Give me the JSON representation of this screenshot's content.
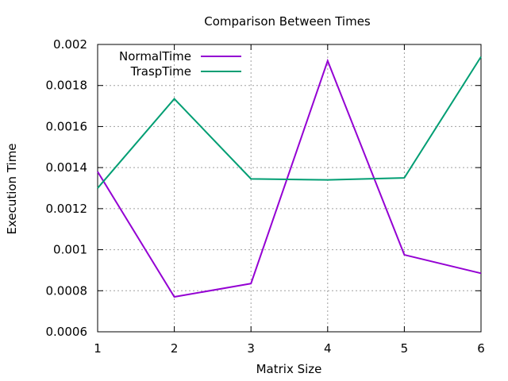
{
  "chart_data": {
    "type": "line",
    "title": "Comparison Between Times",
    "xlabel": "Matrix Size",
    "ylabel": "Execution Time",
    "x": [
      1,
      2,
      3,
      4,
      5,
      6
    ],
    "xlim": [
      1,
      6
    ],
    "ylim": [
      0.0006,
      0.002
    ],
    "xticks": [
      "1",
      "2",
      "3",
      "4",
      "5",
      "6"
    ],
    "yticks": [
      "0.0006",
      "0.0008",
      "0.001",
      "0.0012",
      "0.0014",
      "0.0016",
      "0.0018",
      "0.002"
    ],
    "grid": true,
    "legend_position": "top-left",
    "series": [
      {
        "name": "NormalTime",
        "color": "#9400d3",
        "values": [
          0.00138,
          0.00077,
          0.000835,
          0.00192,
          0.000975,
          0.000885
        ]
      },
      {
        "name": "TraspTime",
        "color": "#009e73",
        "values": [
          0.0013,
          0.001735,
          0.001345,
          0.00134,
          0.00135,
          0.00194
        ]
      }
    ]
  }
}
